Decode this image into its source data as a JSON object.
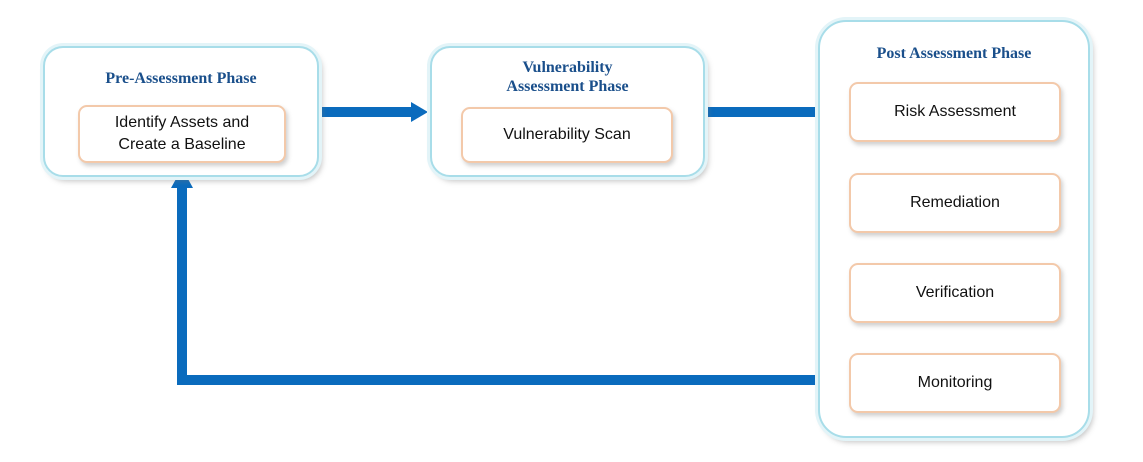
{
  "colors": {
    "arrow": "#0a6bbd",
    "phase_border": "#a8dde9",
    "phase_title": "#1a4f8b",
    "step_border": "#f3c9aa"
  },
  "phases": {
    "pre": {
      "title": "Pre-Assessment Phase",
      "step": "Identify Assets and\nCreate a Baseline"
    },
    "vuln": {
      "title": "Vulnerability\nAssessment Phase",
      "step": "Vulnerability Scan"
    },
    "post": {
      "title": "Post Assessment Phase",
      "steps": [
        "Risk Assessment",
        "Remediation",
        "Verification",
        "Monitoring"
      ]
    }
  }
}
